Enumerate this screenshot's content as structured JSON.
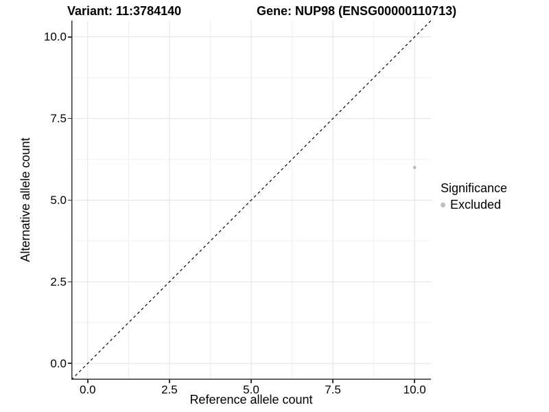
{
  "title": {
    "variant": "Variant: 11:3784140",
    "gene": "Gene: NUP98 (ENSG00000110713)"
  },
  "axes": {
    "x": {
      "label": "Reference allele count",
      "ticks": [
        {
          "value": 0,
          "label": "0.0"
        },
        {
          "value": 2.5,
          "label": "2.5"
        },
        {
          "value": 5,
          "label": "5.0"
        },
        {
          "value": 7.5,
          "label": "7.5"
        },
        {
          "value": 10,
          "label": "10.0"
        }
      ]
    },
    "y": {
      "label": "Alternative allele count",
      "ticks": [
        {
          "value": 0,
          "label": "0.0"
        },
        {
          "value": 2.5,
          "label": "2.5"
        },
        {
          "value": 5,
          "label": "5.0"
        },
        {
          "value": 7.5,
          "label": "7.5"
        },
        {
          "value": 10,
          "label": "10.0"
        }
      ]
    }
  },
  "legend": {
    "title": "Significance",
    "items": [
      {
        "label": "Excluded",
        "color": "#bebebe",
        "marker": "circle-icon"
      }
    ]
  },
  "chart_data": {
    "type": "scatter",
    "title": "Variant: 11:3784140   Gene: NUP98 (ENSG00000110713)",
    "xlabel": "Reference allele count",
    "ylabel": "Alternative allele count",
    "xlim": [
      -0.5,
      10.5
    ],
    "ylim": [
      -0.5,
      10.5
    ],
    "x_ticks": [
      0,
      2.5,
      5,
      7.5,
      10
    ],
    "y_ticks": [
      0,
      2.5,
      5,
      7.5,
      10
    ],
    "grid": {
      "on": true,
      "major": [
        0,
        2.5,
        5,
        7.5,
        10
      ],
      "minor": [
        1.25,
        3.75,
        6.25,
        8.75
      ],
      "major_color": "#e2e2e2",
      "minor_color": "#f0f0f0"
    },
    "series": [
      {
        "name": "Excluded",
        "color": "#bebebe",
        "points": [
          {
            "x": 10,
            "y": 6
          }
        ]
      }
    ],
    "reference_line": {
      "type": "identity",
      "from": [
        -0.5,
        -0.5
      ],
      "to": [
        10.5,
        10.5
      ],
      "style": "dashed",
      "color": "#000000"
    },
    "legend_position": "right"
  },
  "colors": {
    "background": "#ffffff",
    "text": "#000000",
    "axis_line": "#333333",
    "tick_mark": "#333333",
    "grid_major": "#e2e2e2",
    "grid_minor": "#f0f0f0",
    "point": "#bebebe"
  }
}
